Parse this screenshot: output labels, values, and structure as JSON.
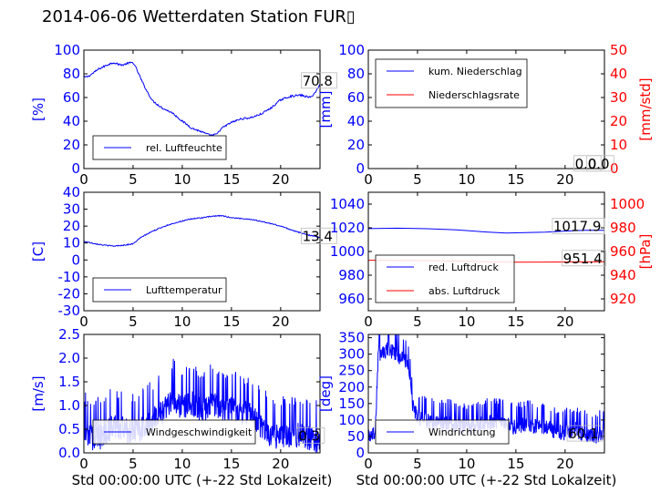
{
  "title": "2014-06-06 Wetterdaten Station FUR▯",
  "colors": {
    "left_axis": "#0000ff",
    "right_axis": "#ff0000",
    "frame": "#000000"
  },
  "chart_data": [
    {
      "id": "humidity",
      "type": "line",
      "xlim": [
        0,
        24
      ],
      "ylim": [
        0,
        100
      ],
      "xticks": [
        0,
        5,
        10,
        15,
        20
      ],
      "yticks": [
        0,
        20,
        40,
        60,
        80,
        100
      ],
      "ylabel": "[%]",
      "legend": {
        "position": "lower-left",
        "entries": [
          {
            "name": "rel. Luftfeuchte",
            "color": "#0000ff"
          }
        ]
      },
      "annotations": [
        {
          "text": "70.8",
          "x": 22.2,
          "y": 74
        }
      ],
      "series": [
        {
          "name": "rel. Luftfeuchte",
          "color": "#0000ff",
          "noise": 0.8,
          "points": [
            [
              0,
              77
            ],
            [
              0.5,
              78
            ],
            [
              1,
              81
            ],
            [
              1.5,
              84
            ],
            [
              2,
              86
            ],
            [
              2.5,
              88
            ],
            [
              3,
              89.5
            ],
            [
              3.5,
              88
            ],
            [
              4,
              87.5
            ],
            [
              4.5,
              89
            ],
            [
              5,
              89.5
            ],
            [
              5.3,
              85
            ],
            [
              6,
              72
            ],
            [
              6.5,
              64
            ],
            [
              7,
              57
            ],
            [
              8,
              51
            ],
            [
              9,
              47
            ],
            [
              10,
              40
            ],
            [
              11,
              34
            ],
            [
              12,
              31
            ],
            [
              12.5,
              29
            ],
            [
              13,
              28
            ],
            [
              13.5,
              29
            ],
            [
              14,
              34
            ],
            [
              15,
              39
            ],
            [
              16,
              42
            ],
            [
              17,
              43
            ],
            [
              18,
              46
            ],
            [
              19,
              51
            ],
            [
              20,
              58
            ],
            [
              21,
              61
            ],
            [
              22,
              62
            ],
            [
              23,
              60
            ],
            [
              23.5,
              64
            ],
            [
              24,
              71
            ]
          ]
        }
      ]
    },
    {
      "id": "precipitation",
      "type": "line",
      "xlim": [
        0,
        24
      ],
      "ylim": [
        0,
        100
      ],
      "xticks": [
        0,
        5,
        10,
        15,
        20
      ],
      "yticks": [
        0,
        20,
        40,
        60,
        80,
        100
      ],
      "ylabel": "[mm]",
      "y2lim": [
        0,
        50
      ],
      "y2ticks": [
        0,
        10,
        20,
        30,
        40,
        50
      ],
      "y2label": "[mm/std]",
      "legend": {
        "position": "upper-left",
        "entries": [
          {
            "name": "kum. Niederschlag",
            "color": "#0000ff"
          },
          {
            "name": "Niederschlagsrate",
            "color": "#ff0000"
          }
        ]
      },
      "annotations": [
        {
          "text": "0.0",
          "x": 21.0,
          "y": 4
        },
        {
          "text": "0.0",
          "x": 22.3,
          "y": 4
        }
      ],
      "series": [
        {
          "name": "kum. Niederschlag",
          "color": "#0000ff",
          "axis": "left",
          "noise": 0,
          "points": [
            [
              0,
              0
            ],
            [
              24,
              0
            ]
          ]
        },
        {
          "name": "Niederschlagsrate",
          "color": "#ff0000",
          "axis": "right",
          "noise": 0,
          "points": [
            [
              0,
              0
            ],
            [
              24,
              0
            ]
          ]
        }
      ]
    },
    {
      "id": "temperature",
      "type": "line",
      "xlim": [
        0,
        24
      ],
      "ylim": [
        -30,
        40
      ],
      "xticks": [
        0,
        5,
        10,
        15,
        20
      ],
      "yticks": [
        -30,
        -20,
        -10,
        0,
        10,
        20,
        30,
        40
      ],
      "ylabel": "[C]",
      "legend": {
        "position": "lower-left",
        "entries": [
          {
            "name": "Lufttemperatur",
            "color": "#0000ff"
          }
        ]
      },
      "annotations": [
        {
          "text": "13.4",
          "x": 22.2,
          "y": 14
        }
      ],
      "series": [
        {
          "name": "Lufttemperatur",
          "color": "#0000ff",
          "noise": 0.3,
          "points": [
            [
              0,
              11
            ],
            [
              1,
              9.8
            ],
            [
              2,
              8.8
            ],
            [
              3,
              8.2
            ],
            [
              4,
              8.7
            ],
            [
              5,
              9.5
            ],
            [
              5.5,
              12
            ],
            [
              6,
              14
            ],
            [
              7,
              17
            ],
            [
              8,
              19.5
            ],
            [
              9,
              21.5
            ],
            [
              10,
              23
            ],
            [
              11,
              24.3
            ],
            [
              12,
              25
            ],
            [
              13,
              25.7
            ],
            [
              14,
              26.2
            ],
            [
              15,
              25
            ],
            [
              16,
              24.5
            ],
            [
              17,
              24
            ],
            [
              18,
              22.8
            ],
            [
              19,
              21.5
            ],
            [
              20,
              20
            ],
            [
              21,
              18
            ],
            [
              22,
              16
            ],
            [
              23,
              14.5
            ],
            [
              24,
              13.4
            ]
          ]
        }
      ]
    },
    {
      "id": "pressure",
      "type": "line",
      "xlim": [
        0,
        24
      ],
      "ylim": [
        950,
        1050
      ],
      "xticks": [
        0,
        5,
        10,
        15,
        20
      ],
      "yticks": [
        960,
        980,
        1000,
        1020,
        1040
      ],
      "ylabel": "",
      "y2lim": [
        910,
        1010
      ],
      "y2ticks": [
        920,
        940,
        960,
        980,
        1000
      ],
      "y2label": "[hPa]",
      "legend": {
        "position": "lower-left",
        "entries": [
          {
            "name": "red. Luftdruck",
            "color": "#0000ff"
          },
          {
            "name": "abs. Luftdruck",
            "color": "#ff0000"
          }
        ]
      },
      "annotations": [
        {
          "text": "1017.9",
          "x": 18.8,
          "y": 1021
        },
        {
          "text": "951.4",
          "x": 19.8,
          "y": 994
        }
      ],
      "series": [
        {
          "name": "red. Luftdruck",
          "color": "#0000ff",
          "axis": "left",
          "noise": 0,
          "points": [
            [
              0,
              1019.3
            ],
            [
              3,
              1019.7
            ],
            [
              6,
              1019.2
            ],
            [
              9,
              1018.2
            ],
            [
              12,
              1016.5
            ],
            [
              14,
              1015.6
            ],
            [
              16,
              1015.9
            ],
            [
              18,
              1016.4
            ],
            [
              20,
              1017.2
            ],
            [
              22,
              1017.9
            ],
            [
              24,
              1017.9
            ]
          ]
        },
        {
          "name": "abs. Luftdruck",
          "color": "#ff0000",
          "axis": "right",
          "noise": 0,
          "points": [
            [
              0,
              952.6
            ],
            [
              5,
              952.4
            ],
            [
              10,
              951.8
            ],
            [
              14,
              951.0
            ],
            [
              18,
              951.1
            ],
            [
              24,
              951.4
            ]
          ]
        }
      ]
    },
    {
      "id": "windspeed",
      "type": "line",
      "xlim": [
        0,
        24
      ],
      "ylim": [
        0,
        2.5
      ],
      "xticks": [
        0,
        5,
        10,
        15,
        20
      ],
      "yticks": [
        0.0,
        0.5,
        1.0,
        1.5,
        2.0,
        2.5
      ],
      "ylabel": "[m/s]",
      "xlabel": "Std 00:00:00 UTC (+-22 Std Lokalzeit)",
      "legend": {
        "position": "lower-left",
        "entries": [
          {
            "name": "Windgeschwindigkeit",
            "color": "#0000ff"
          }
        ]
      },
      "annotations": [
        {
          "text": "0.3",
          "x": 21.8,
          "y": 0.36
        }
      ],
      "series": [
        {
          "name": "Windgeschwindigkeit",
          "color": "#0000ff",
          "noise": 0.45,
          "spiky": true,
          "points": [
            [
              0,
              0.5
            ],
            [
              1,
              0.35
            ],
            [
              2,
              0.4
            ],
            [
              3,
              0.6
            ],
            [
              4,
              0.55
            ],
            [
              5,
              0.45
            ],
            [
              6,
              0.55
            ],
            [
              7,
              0.75
            ],
            [
              8,
              0.9
            ],
            [
              9,
              1.2
            ],
            [
              10,
              1.0
            ],
            [
              11,
              1.1
            ],
            [
              12,
              0.9
            ],
            [
              13,
              1.1
            ],
            [
              14,
              1.0
            ],
            [
              15,
              1.0
            ],
            [
              16,
              0.9
            ],
            [
              17,
              0.85
            ],
            [
              18,
              0.6
            ],
            [
              19,
              0.4
            ],
            [
              20,
              0.4
            ],
            [
              21,
              0.35
            ],
            [
              22,
              0.45
            ],
            [
              23,
              0.35
            ],
            [
              24,
              0.3
            ]
          ]
        }
      ]
    },
    {
      "id": "winddirection",
      "type": "line",
      "xlim": [
        0,
        24
      ],
      "ylim": [
        0,
        360
      ],
      "xticks": [
        0,
        5,
        10,
        15,
        20
      ],
      "yticks": [
        0,
        50,
        100,
        150,
        200,
        250,
        300,
        350
      ],
      "ylabel": "[deg]",
      "xlabel": "Std 00:00:00 UTC (+-22 Std Lokalzeit)",
      "legend": {
        "position": "lower-left",
        "entries": [
          {
            "name": "Windrichtung",
            "color": "#0000ff"
          }
        ]
      },
      "annotations": [
        {
          "text": "60.1",
          "x": 20.3,
          "y": 58
        }
      ],
      "series": [
        {
          "name": "Windrichtung",
          "color": "#0000ff",
          "noise": 40,
          "spiky": true,
          "points": [
            [
              0,
              55
            ],
            [
              0.7,
              60
            ],
            [
              1,
              300
            ],
            [
              2,
              320
            ],
            [
              3,
              300
            ],
            [
              4,
              280
            ],
            [
              4.5,
              150
            ],
            [
              5,
              110
            ],
            [
              6,
              100
            ],
            [
              7,
              90
            ],
            [
              8,
              95
            ],
            [
              9,
              85
            ],
            [
              10,
              80
            ],
            [
              11,
              85
            ],
            [
              12,
              95
            ],
            [
              13,
              100
            ],
            [
              14,
              90
            ],
            [
              15,
              80
            ],
            [
              16,
              90
            ],
            [
              17,
              85
            ],
            [
              18,
              80
            ],
            [
              19,
              70
            ],
            [
              20,
              65
            ],
            [
              21,
              75
            ],
            [
              22,
              60
            ],
            [
              23,
              50
            ],
            [
              23.6,
              60
            ],
            [
              24,
              65
            ]
          ]
        }
      ]
    }
  ]
}
